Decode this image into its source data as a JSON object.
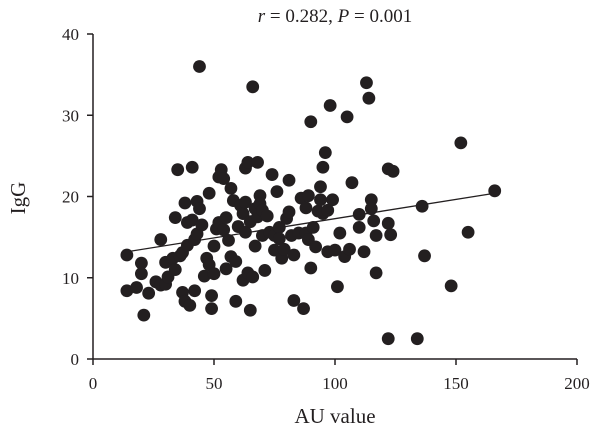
{
  "chart_data": {
    "type": "scatter",
    "title": {
      "r_symbol": "r",
      "r_text": " = 0.282, ",
      "p_symbol": "P",
      "p_text": " = 0.001"
    },
    "xlabel": "AU value",
    "ylabel": "IgG",
    "xlim": [
      0,
      200
    ],
    "ylim": [
      0,
      40
    ],
    "xticks": [
      0,
      50,
      100,
      150,
      200
    ],
    "yticks": [
      0,
      10,
      20,
      30,
      40
    ],
    "grid": false,
    "legend": "none",
    "colors": {
      "point": "#231f20",
      "axis": "#231f20",
      "line": "#231f20"
    },
    "trendline": {
      "x": [
        14,
        166
      ],
      "y": [
        13.2,
        20.4
      ]
    },
    "points": [
      [
        14,
        12.8
      ],
      [
        14,
        8.4
      ],
      [
        18,
        8.8
      ],
      [
        20,
        10.5
      ],
      [
        20,
        11.8
      ],
      [
        21,
        5.4
      ],
      [
        23,
        8.1
      ],
      [
        26,
        9.5
      ],
      [
        28,
        14.7
      ],
      [
        28,
        9.1
      ],
      [
        30,
        11.9
      ],
      [
        30,
        9.2
      ],
      [
        31,
        10.1
      ],
      [
        33,
        12.4
      ],
      [
        34,
        17.4
      ],
      [
        34,
        11.0
      ],
      [
        35,
        23.3
      ],
      [
        36,
        12.7
      ],
      [
        37,
        8.2
      ],
      [
        37,
        13.1
      ],
      [
        38,
        19.2
      ],
      [
        38,
        7.1
      ],
      [
        39,
        14.0
      ],
      [
        39,
        16.8
      ],
      [
        40,
        6.6
      ],
      [
        41,
        23.6
      ],
      [
        41,
        17.1
      ],
      [
        42,
        8.4
      ],
      [
        42,
        14.7
      ],
      [
        43,
        15.4
      ],
      [
        43,
        19.4
      ],
      [
        44,
        36.0
      ],
      [
        44,
        18.5
      ],
      [
        45,
        16.5
      ],
      [
        46,
        10.2
      ],
      [
        47,
        12.4
      ],
      [
        48,
        11.6
      ],
      [
        48,
        20.4
      ],
      [
        49,
        7.8
      ],
      [
        49,
        6.2
      ],
      [
        50,
        10.5
      ],
      [
        50,
        13.9
      ],
      [
        51,
        16.0
      ],
      [
        52,
        22.4
      ],
      [
        52,
        16.8
      ],
      [
        53,
        23.3
      ],
      [
        54,
        22.2
      ],
      [
        54,
        15.9
      ],
      [
        55,
        11.1
      ],
      [
        55,
        17.4
      ],
      [
        56,
        14.6
      ],
      [
        57,
        21.0
      ],
      [
        57,
        12.6
      ],
      [
        58,
        19.5
      ],
      [
        59,
        7.1
      ],
      [
        59,
        12.0
      ],
      [
        60,
        16.3
      ],
      [
        61,
        18.9
      ],
      [
        62,
        9.7
      ],
      [
        62,
        17.9
      ],
      [
        63,
        15.6
      ],
      [
        63,
        23.5
      ],
      [
        63,
        19.3
      ],
      [
        64,
        10.6
      ],
      [
        64,
        24.2
      ],
      [
        65,
        16.9
      ],
      [
        65,
        6.0
      ],
      [
        66,
        33.5
      ],
      [
        66,
        10.1
      ],
      [
        67,
        18.5
      ],
      [
        67,
        13.9
      ],
      [
        68,
        24.2
      ],
      [
        68,
        17.5
      ],
      [
        69,
        20.1
      ],
      [
        69,
        19.1
      ],
      [
        70,
        15.2
      ],
      [
        70,
        18.3
      ],
      [
        71,
        10.9
      ],
      [
        72,
        17.6
      ],
      [
        73,
        15.6
      ],
      [
        74,
        22.7
      ],
      [
        75,
        13.4
      ],
      [
        75,
        15.2
      ],
      [
        76,
        20.6
      ],
      [
        77,
        16.2
      ],
      [
        77,
        14.8
      ],
      [
        78,
        12.4
      ],
      [
        79,
        13.5
      ],
      [
        80,
        17.3
      ],
      [
        81,
        22.0
      ],
      [
        81,
        18.1
      ],
      [
        82,
        15.2
      ],
      [
        83,
        7.2
      ],
      [
        83,
        12.8
      ],
      [
        85,
        15.5
      ],
      [
        86,
        19.8
      ],
      [
        87,
        6.2
      ],
      [
        88,
        15.5
      ],
      [
        88,
        18.6
      ],
      [
        89,
        20.1
      ],
      [
        89,
        14.7
      ],
      [
        90,
        29.2
      ],
      [
        90,
        11.2
      ],
      [
        91,
        16.2
      ],
      [
        92,
        13.8
      ],
      [
        93,
        18.2
      ],
      [
        94,
        21.2
      ],
      [
        94,
        19.6
      ],
      [
        95,
        23.6
      ],
      [
        95,
        17.9
      ],
      [
        96,
        25.4
      ],
      [
        97,
        18.3
      ],
      [
        97,
        13.2
      ],
      [
        98,
        31.2
      ],
      [
        99,
        19.6
      ],
      [
        100,
        13.4
      ],
      [
        101,
        8.9
      ],
      [
        102,
        15.5
      ],
      [
        104,
        12.6
      ],
      [
        105,
        29.8
      ],
      [
        106,
        13.5
      ],
      [
        107,
        21.7
      ],
      [
        110,
        16.2
      ],
      [
        110,
        17.8
      ],
      [
        112,
        13.2
      ],
      [
        113,
        34.0
      ],
      [
        114,
        32.1
      ],
      [
        115,
        19.6
      ],
      [
        115,
        18.5
      ],
      [
        116,
        17.0
      ],
      [
        117,
        10.6
      ],
      [
        117,
        15.2
      ],
      [
        122,
        23.4
      ],
      [
        122,
        16.7
      ],
      [
        122,
        2.5
      ],
      [
        123,
        15.3
      ],
      [
        124,
        23.1
      ],
      [
        134,
        2.5
      ],
      [
        136,
        18.8
      ],
      [
        137,
        12.7
      ],
      [
        148,
        9.0
      ],
      [
        152,
        26.6
      ],
      [
        155,
        15.6
      ],
      [
        166,
        20.7
      ]
    ]
  }
}
